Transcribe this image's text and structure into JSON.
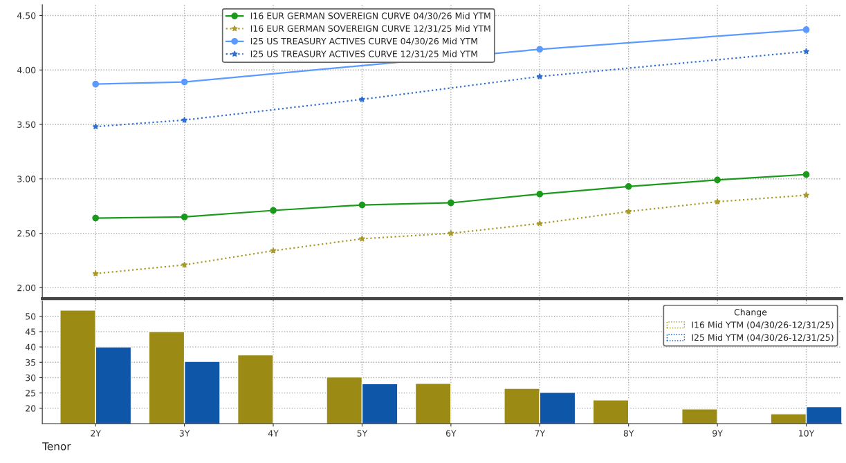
{
  "chart_data": [
    {
      "type": "line",
      "categories": [
        null,
        null,
        null,
        null,
        null,
        null,
        null,
        null,
        null
      ],
      "series": [
        {
          "name": "I16 EUR GERMAN SOVEREIGN CURVE 04/30/26 Mid YTM",
          "color": "#1a9a1a",
          "marker": "circle",
          "line_style": "solid",
          "values": [
            2.64,
            2.65,
            2.71,
            2.76,
            2.78,
            2.86,
            2.93,
            2.99,
            3.04
          ]
        },
        {
          "name": "I16 EUR GERMAN SOVEREIGN CURVE 12/31/25 Mid YTM",
          "color": "#a89a2a",
          "marker": "star",
          "line_style": "dotted",
          "values": [
            2.13,
            2.21,
            2.34,
            2.45,
            2.5,
            2.59,
            2.7,
            2.79,
            2.85
          ]
        },
        {
          "name": "I25 US TREASURY ACTIVES CURVE 04/30/26 Mid YTM",
          "color": "#5b9aff",
          "marker": "circle",
          "line_style": "solid",
          "values": [
            3.87,
            3.89,
            null,
            null,
            null,
            4.19,
            null,
            null,
            4.37
          ]
        },
        {
          "name": "I25 US TREASURY ACTIVES CURVE 12/31/25 Mid YTM",
          "color": "#2f6fd0",
          "marker": "star",
          "line_style": "dotted",
          "values": [
            3.48,
            3.54,
            null,
            3.73,
            null,
            3.94,
            null,
            null,
            4.17
          ]
        }
      ],
      "ylim": [
        1.9,
        4.6
      ],
      "yticks": [
        {
          "value": 2.0,
          "label": "2.00"
        },
        {
          "value": 2.5,
          "label": "2.50"
        },
        {
          "value": 3.0,
          "label": "3.00"
        },
        {
          "value": 3.5,
          "label": "3.50"
        },
        {
          "value": 4.0,
          "label": "4.00"
        },
        {
          "value": 4.5,
          "label": "4.50"
        }
      ],
      "grid": true,
      "legend": "top left",
      "tick_labels": "y"
    },
    {
      "type": "bar",
      "categories": [
        "2Y",
        "3Y",
        "4Y",
        "5Y",
        "6Y",
        "7Y",
        "8Y",
        "9Y",
        "10Y"
      ],
      "xlabel": "Tenor",
      "legend_title": "Change",
      "series": [
        {
          "name": "I16 Mid YTM (04/30/26-12/31/25)",
          "color": "#9b8b14",
          "values": [
            52,
            45,
            37.4,
            30.2,
            28.1,
            26.5,
            22.7,
            19.8,
            18.2
          ]
        },
        {
          "name": "I25 Mid YTM (04/30/26-12/31/25)",
          "color": "#0e56a8",
          "values": [
            40,
            35.3,
            null,
            28,
            null,
            25.2,
            null,
            null,
            20.5
          ]
        }
      ],
      "ylim": [
        15,
        55
      ],
      "yticks": [
        20,
        25,
        30,
        35,
        40,
        45,
        50
      ],
      "grid": true,
      "legend": "top right"
    }
  ]
}
